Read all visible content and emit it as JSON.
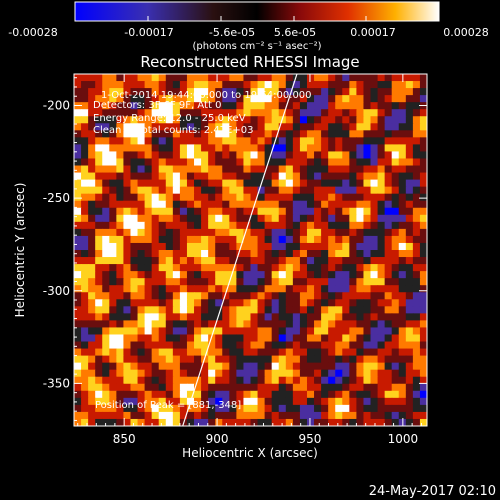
{
  "colorbar": {
    "tick_labels": [
      "-0.00028",
      "-0.00017",
      "-5.6e-05",
      "5.6e-05",
      "0.00017",
      "0.00028"
    ],
    "unit_label": "(photons cm⁻² s⁻¹ asec⁻²)",
    "range": [
      -0.00028,
      0.00028
    ]
  },
  "chart_data": {
    "type": "heatmap",
    "title": "Reconstructed RHESSI Image",
    "xlabel": "Heliocentric X (arcsec)",
    "ylabel": "Heliocentric Y (arcsec)",
    "xlim": [
      823,
      1013
    ],
    "ylim": [
      -373,
      -183
    ],
    "xticks": [
      850,
      900,
      950,
      1000
    ],
    "yticks": [
      -350,
      -300,
      -250,
      -200
    ],
    "info_lines": [
      "1-Oct-2014 19:44:00.000 to 19:54:00.000",
      "Detectors: 3F 6F 9F, Att 0",
      "Energy Range: 12.0 - 25.0 keV",
      "Clean     Total counts: 2.47E+03"
    ],
    "peak_label": "Position of Peak = [881,-348]",
    "limb_line": {
      "x": [
        881.5,
        943
      ],
      "y": [
        -373,
        -183
      ]
    },
    "colormap": [
      "#0000ff",
      "#4a2ea0",
      "#222222",
      "#6a0e0e",
      "#c81a00",
      "#ff7a00",
      "#ffd21e",
      "#ffffff"
    ]
  },
  "footer": {
    "timestamp": "24-May-2017 02:10"
  }
}
